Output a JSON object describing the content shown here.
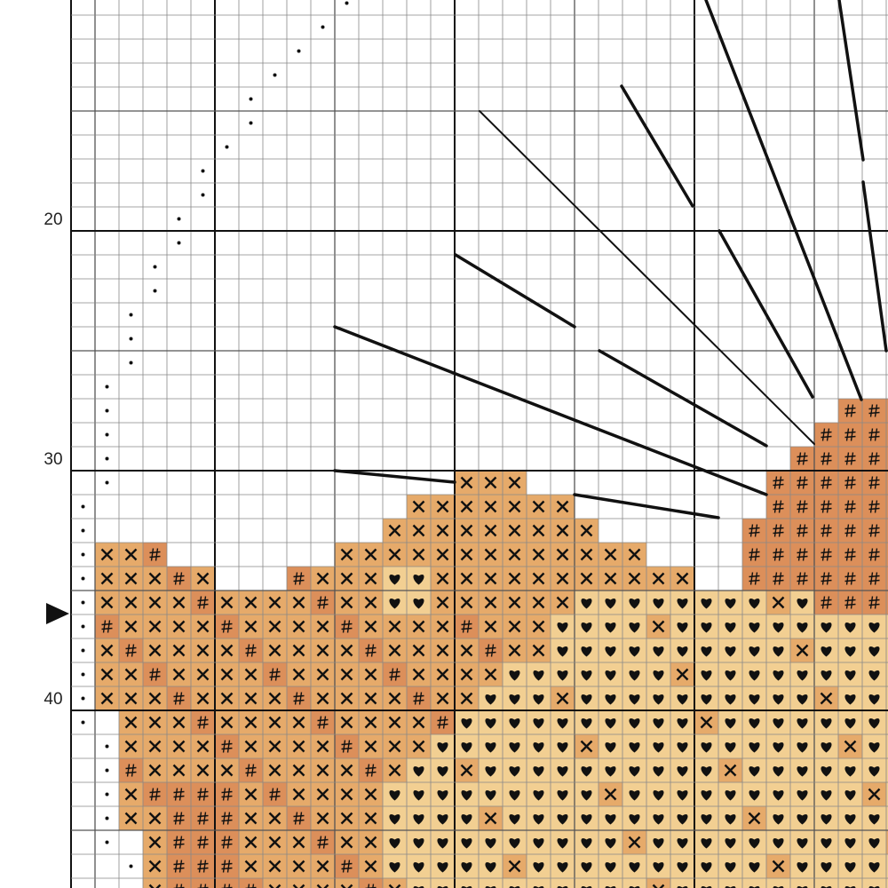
{
  "row_labels": [
    "20",
    "30",
    "40"
  ]
}
